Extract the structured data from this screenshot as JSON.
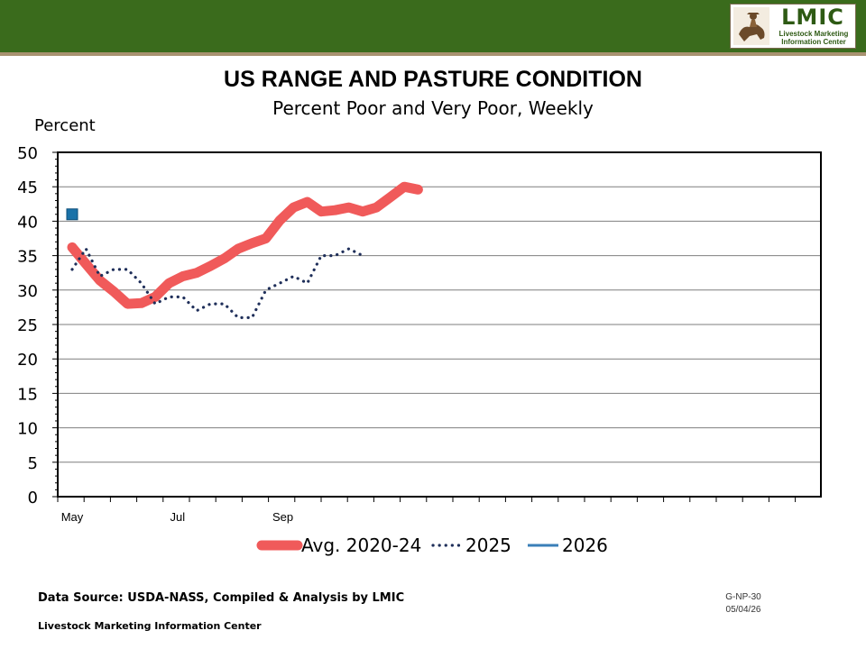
{
  "header": {
    "logo_title": "LMIC",
    "logo_subtitle_line1": "Livestock Marketing",
    "logo_subtitle_line2": "Information Center"
  },
  "colors": {
    "header_bar": "#3a6b1c",
    "avg_line": "#f05a5a",
    "y2025_line": "#1f2f5a",
    "y2026_line": "#3a7fb8",
    "y2026_marker": "#1a72a8"
  },
  "chart_data": {
    "type": "line",
    "title": "US RANGE AND PASTURE CONDITION",
    "subtitle": "Percent Poor and Very Poor, Weekly",
    "ylabel": "Percent",
    "xlabel": "",
    "ylim": [
      0,
      50
    ],
    "yticks": [
      0,
      5,
      10,
      15,
      20,
      25,
      30,
      35,
      40,
      45,
      50
    ],
    "x_unit": "week",
    "xlim": [
      1,
      23
    ],
    "x_tick_labels": [
      {
        "x": 1,
        "label": "May"
      },
      {
        "x": 9,
        "label": "Jul"
      },
      {
        "x": 17,
        "label": "Sep"
      }
    ],
    "grid": true,
    "legend_position": "bottom",
    "series": [
      {
        "name": "Avg. 2020-24",
        "style": "thick-solid",
        "points": [
          [
            1,
            36.2
          ],
          [
            2,
            33.8
          ],
          [
            3,
            31.4
          ],
          [
            4,
            29.8
          ],
          [
            5,
            28.0
          ],
          [
            6,
            28.1
          ],
          [
            7,
            29.0
          ],
          [
            8,
            31.0
          ],
          [
            9,
            32.0
          ],
          [
            10,
            32.5
          ],
          [
            11,
            33.5
          ],
          [
            12,
            34.6
          ],
          [
            13,
            36.0
          ],
          [
            14,
            36.8
          ],
          [
            15,
            37.5
          ],
          [
            16,
            40.1
          ],
          [
            17,
            42.0
          ],
          [
            18,
            42.8
          ],
          [
            19,
            41.4
          ],
          [
            20,
            41.6
          ],
          [
            21,
            42.0
          ],
          [
            22,
            41.4
          ],
          [
            23,
            42.0
          ],
          [
            24,
            43.5
          ],
          [
            25,
            45.0
          ],
          [
            26,
            44.6
          ]
        ]
      },
      {
        "name": "2025",
        "style": "dotted",
        "points": [
          [
            1,
            33.0
          ],
          [
            2,
            36.0
          ],
          [
            3,
            32.0
          ],
          [
            4,
            33.0
          ],
          [
            5,
            33.0
          ],
          [
            6,
            31.0
          ],
          [
            7,
            28.0
          ],
          [
            8,
            29.0
          ],
          [
            9,
            29.0
          ],
          [
            10,
            27.0
          ],
          [
            11,
            28.0
          ],
          [
            12,
            28.0
          ],
          [
            13,
            26.0
          ],
          [
            14,
            26.0
          ],
          [
            15,
            30.0
          ],
          [
            16,
            31.0
          ],
          [
            17,
            32.0
          ],
          [
            18,
            31.0
          ],
          [
            19,
            35.0
          ],
          [
            20,
            35.0
          ],
          [
            21,
            36.0
          ],
          [
            22,
            35.0
          ]
        ]
      },
      {
        "name": "2026",
        "style": "solid-marker",
        "points": [
          [
            1,
            41.0
          ]
        ]
      }
    ]
  },
  "footer": {
    "source": "Data Source:  USDA-NASS, Compiled & Analysis by LMIC",
    "org": "Livestock Marketing Information Center",
    "code": "G-NP-30",
    "date": "05/04/26"
  }
}
